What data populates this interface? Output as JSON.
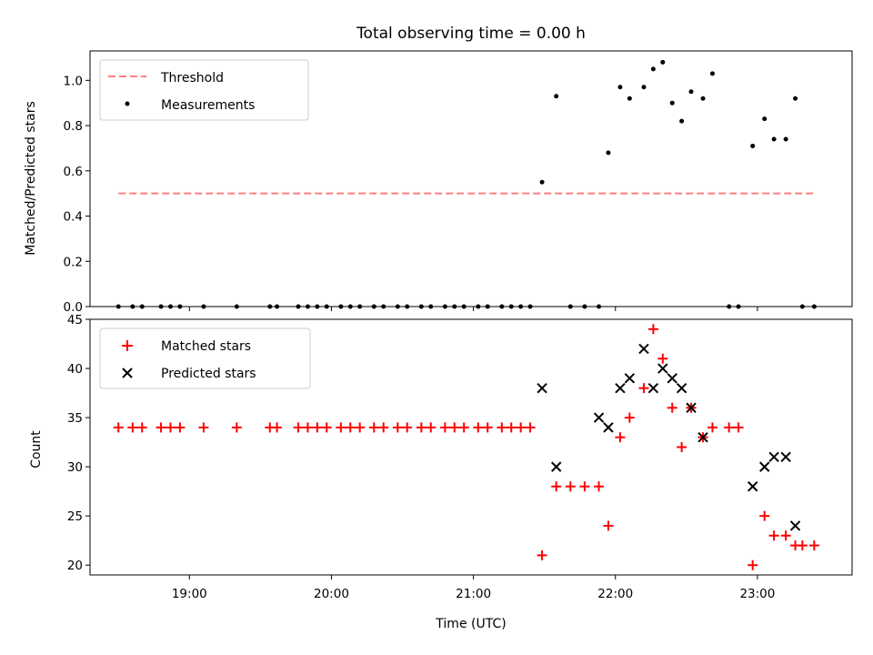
{
  "figure_title": "Total observing time = 0.00 h",
  "chart_data": [
    {
      "type": "scatter",
      "ylabel": "Matched/Predicted stars",
      "xlabel": "",
      "ylim": [
        0,
        1.13
      ],
      "yticks": [
        "0.0",
        "0.2",
        "0.4",
        "0.6",
        "0.8",
        "1.0"
      ],
      "legend": {
        "location": "upper-left",
        "entries": [
          "Threshold",
          "Measurements"
        ]
      },
      "colors": {
        "threshold": "#ff7f7f",
        "measurements": "#000000"
      },
      "threshold": {
        "name": "Threshold",
        "value": 0.5,
        "x_start": "18:30",
        "x_end": "23:24",
        "style": "dashed"
      },
      "series": [
        {
          "name": "Measurements",
          "x": [
            "18:30",
            "18:36",
            "18:40",
            "18:48",
            "18:52",
            "18:56",
            "19:06",
            "19:20",
            "19:34",
            "19:37",
            "19:46",
            "19:50",
            "19:54",
            "19:58",
            "20:04",
            "20:08",
            "20:12",
            "20:18",
            "20:22",
            "20:28",
            "20:32",
            "20:38",
            "20:42",
            "20:48",
            "20:52",
            "20:56",
            "21:02",
            "21:06",
            "21:12",
            "21:16",
            "21:20",
            "21:24",
            "21:29",
            "21:35",
            "21:41",
            "21:47",
            "21:53",
            "21:57",
            "22:02",
            "22:06",
            "22:12",
            "22:16",
            "22:20",
            "22:24",
            "22:28",
            "22:32",
            "22:37",
            "22:41",
            "22:48",
            "22:52",
            "22:58",
            "23:03",
            "23:07",
            "23:12",
            "23:16",
            "23:19",
            "23:24"
          ],
          "y": [
            0,
            0,
            0,
            0,
            0,
            0,
            0,
            0,
            0,
            0,
            0,
            0,
            0,
            0,
            0,
            0,
            0,
            0,
            0,
            0,
            0,
            0,
            0,
            0,
            0,
            0,
            0,
            0,
            0,
            0,
            0,
            0,
            0.55,
            0.93,
            0,
            0,
            0,
            0.68,
            0.97,
            0.92,
            0.97,
            1.05,
            1.08,
            0.9,
            0.82,
            0.95,
            0.92,
            1.03,
            0,
            0,
            0.71,
            0.83,
            0.74,
            0.74,
            0.92,
            0,
            0
          ]
        }
      ]
    },
    {
      "type": "scatter",
      "ylabel": "Count",
      "xlabel": "Time (UTC)",
      "ylim": [
        19,
        45
      ],
      "yticks": [
        "20",
        "25",
        "30",
        "35",
        "40",
        "45"
      ],
      "xticks": [
        "19:00",
        "20:00",
        "21:00",
        "22:00",
        "23:00"
      ],
      "legend": {
        "location": "upper-left",
        "entries": [
          "Matched stars",
          "Predicted stars"
        ]
      },
      "colors": {
        "matched": "#ff0000",
        "predicted": "#000000"
      },
      "series": [
        {
          "name": "Matched stars",
          "marker": "plus",
          "x": [
            "18:30",
            "18:36",
            "18:40",
            "18:48",
            "18:52",
            "18:56",
            "19:06",
            "19:20",
            "19:34",
            "19:37",
            "19:46",
            "19:50",
            "19:54",
            "19:58",
            "20:04",
            "20:08",
            "20:12",
            "20:18",
            "20:22",
            "20:28",
            "20:32",
            "20:38",
            "20:42",
            "20:48",
            "20:52",
            "20:56",
            "21:02",
            "21:06",
            "21:12",
            "21:16",
            "21:20",
            "21:24",
            "21:29",
            "21:35",
            "21:41",
            "21:47",
            "21:53",
            "21:57",
            "22:02",
            "22:06",
            "22:12",
            "22:16",
            "22:20",
            "22:24",
            "22:28",
            "22:32",
            "22:37",
            "22:41",
            "22:48",
            "22:52",
            "22:58",
            "23:03",
            "23:07",
            "23:12",
            "23:16",
            "23:19",
            "23:24"
          ],
          "y": [
            34,
            34,
            34,
            34,
            34,
            34,
            34,
            34,
            34,
            34,
            34,
            34,
            34,
            34,
            34,
            34,
            34,
            34,
            34,
            34,
            34,
            34,
            34,
            34,
            34,
            34,
            34,
            34,
            34,
            34,
            34,
            34,
            21,
            28,
            28,
            28,
            28,
            24,
            33,
            35,
            38,
            44,
            41,
            36,
            32,
            36,
            33,
            34,
            34,
            34,
            20,
            25,
            23,
            23,
            22,
            22,
            22
          ]
        },
        {
          "name": "Predicted stars",
          "marker": "x",
          "x": [
            "21:29",
            "21:35",
            "21:53",
            "21:57",
            "22:02",
            "22:06",
            "22:12",
            "22:16",
            "22:20",
            "22:24",
            "22:28",
            "22:32",
            "22:37",
            "22:58",
            "23:03",
            "23:07",
            "23:12",
            "23:16"
          ],
          "y": [
            38,
            30,
            35,
            34,
            38,
            39,
            42,
            38,
            40,
            39,
            38,
            36,
            33,
            28,
            30,
            31,
            31,
            24
          ]
        }
      ]
    }
  ]
}
